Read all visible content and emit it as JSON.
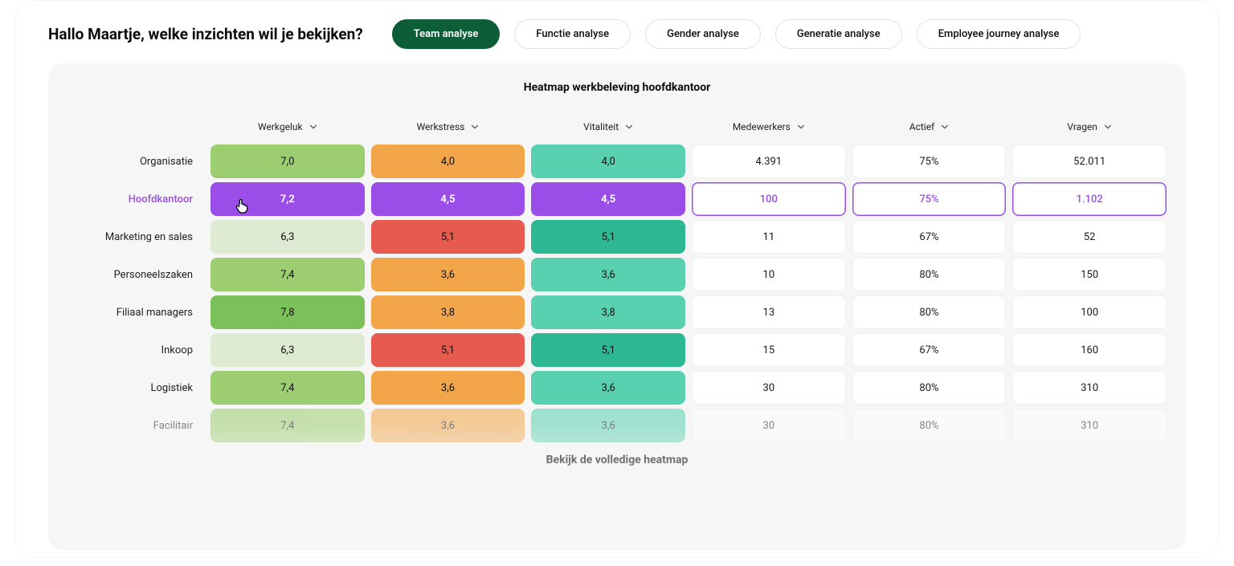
{
  "greeting": "Hallo Maartje, welke inzichten wil je bekijken?",
  "tabs": [
    {
      "label": "Team analyse",
      "active": true
    },
    {
      "label": "Functie analyse",
      "active": false
    },
    {
      "label": "Gender analyse",
      "active": false
    },
    {
      "label": "Generatie analyse",
      "active": false
    },
    {
      "label": "Employee journey analyse",
      "active": false
    }
  ],
  "heatmap": {
    "title": "Heatmap werkbeleving hoofdkantoor",
    "type": "heatmap-table",
    "columns": [
      {
        "label": "Werkgeluk"
      },
      {
        "label": "Werkstress"
      },
      {
        "label": "Vitaliteit"
      },
      {
        "label": "Medewerkers"
      },
      {
        "label": "Actief"
      },
      {
        "label": "Vragen"
      }
    ],
    "rows": [
      {
        "label": "Organisatie",
        "highlight": false,
        "cells": [
          {
            "value": "7,0",
            "bg": "#9ccd70",
            "fg": "#101010"
          },
          {
            "value": "4,0",
            "bg": "#f2a649",
            "fg": "#101010"
          },
          {
            "value": "4,0",
            "bg": "#59d0b0",
            "fg": "#101010"
          },
          {
            "value": "4.391",
            "bg": "#ffffff",
            "fg": "#1a1a1a",
            "plain": true
          },
          {
            "value": "75%",
            "bg": "#ffffff",
            "fg": "#1a1a1a",
            "plain": true
          },
          {
            "value": "52.011",
            "bg": "#ffffff",
            "fg": "#1a1a1a",
            "plain": true
          }
        ]
      },
      {
        "label": "Hoofdkantoor",
        "highlight": true,
        "cells": [
          {
            "value": "7,2",
            "bg": "#9b4de8",
            "fg": "#ffffff",
            "bold": true
          },
          {
            "value": "4,5",
            "bg": "#9b4de8",
            "fg": "#ffffff",
            "bold": true
          },
          {
            "value": "4,5",
            "bg": "#9b4de8",
            "fg": "#ffffff",
            "bold": true
          },
          {
            "value": "100",
            "hl_white": true
          },
          {
            "value": "75%",
            "hl_white": true
          },
          {
            "value": "1.102",
            "hl_white": true
          }
        ]
      },
      {
        "label": "Marketing en sales",
        "highlight": false,
        "cells": [
          {
            "value": "6,3",
            "bg": "#dfead3",
            "fg": "#101010"
          },
          {
            "value": "5,1",
            "bg": "#e65a4f",
            "fg": "#101010"
          },
          {
            "value": "5,1",
            "bg": "#2eb793",
            "fg": "#101010"
          },
          {
            "value": "11",
            "plain": true
          },
          {
            "value": "67%",
            "plain": true
          },
          {
            "value": "52",
            "plain": true
          }
        ]
      },
      {
        "label": "Personeelszaken",
        "highlight": false,
        "cells": [
          {
            "value": "7,4",
            "bg": "#9ccd70",
            "fg": "#101010"
          },
          {
            "value": "3,6",
            "bg": "#f2a649",
            "fg": "#101010"
          },
          {
            "value": "3,6",
            "bg": "#59d0b0",
            "fg": "#101010"
          },
          {
            "value": "10",
            "plain": true
          },
          {
            "value": "80%",
            "plain": true
          },
          {
            "value": "150",
            "plain": true
          }
        ]
      },
      {
        "label": "Filiaal managers",
        "highlight": false,
        "cells": [
          {
            "value": "7,8",
            "bg": "#79c158",
            "fg": "#101010"
          },
          {
            "value": "3,8",
            "bg": "#f2a649",
            "fg": "#101010"
          },
          {
            "value": "3,8",
            "bg": "#59d0b0",
            "fg": "#101010"
          },
          {
            "value": "13",
            "plain": true
          },
          {
            "value": "80%",
            "plain": true
          },
          {
            "value": "100",
            "plain": true
          }
        ]
      },
      {
        "label": "Inkoop",
        "highlight": false,
        "cells": [
          {
            "value": "6,3",
            "bg": "#dfead3",
            "fg": "#101010"
          },
          {
            "value": "5,1",
            "bg": "#e65a4f",
            "fg": "#101010"
          },
          {
            "value": "5,1",
            "bg": "#2eb793",
            "fg": "#101010"
          },
          {
            "value": "15",
            "plain": true
          },
          {
            "value": "67%",
            "plain": true
          },
          {
            "value": "160",
            "plain": true
          }
        ]
      },
      {
        "label": "Logistiek",
        "highlight": false,
        "cells": [
          {
            "value": "7,4",
            "bg": "#9ccd70",
            "fg": "#101010"
          },
          {
            "value": "3,6",
            "bg": "#f2a649",
            "fg": "#101010"
          },
          {
            "value": "3,6",
            "bg": "#59d0b0",
            "fg": "#101010"
          },
          {
            "value": "30",
            "plain": true
          },
          {
            "value": "80%",
            "plain": true
          },
          {
            "value": "310",
            "plain": true
          }
        ]
      },
      {
        "label": "Facilitair",
        "highlight": false,
        "faded": true,
        "cells": [
          {
            "value": "7,4",
            "bg": "#9ccd70",
            "fg": "#101010"
          },
          {
            "value": "3,6",
            "bg": "#f2a649",
            "fg": "#101010"
          },
          {
            "value": "3,6",
            "bg": "#59d0b0",
            "fg": "#101010"
          },
          {
            "value": "30",
            "plain": true
          },
          {
            "value": "80%",
            "plain": true
          },
          {
            "value": "310",
            "plain": true
          }
        ]
      }
    ],
    "footer_link": "Bekijk de volledige heatmap",
    "cursor_on_row": 1
  },
  "colors": {
    "active_pill": "#0d5d38",
    "highlight_purple": "#9b4de8",
    "panel_bg": "#f6f6f6"
  }
}
